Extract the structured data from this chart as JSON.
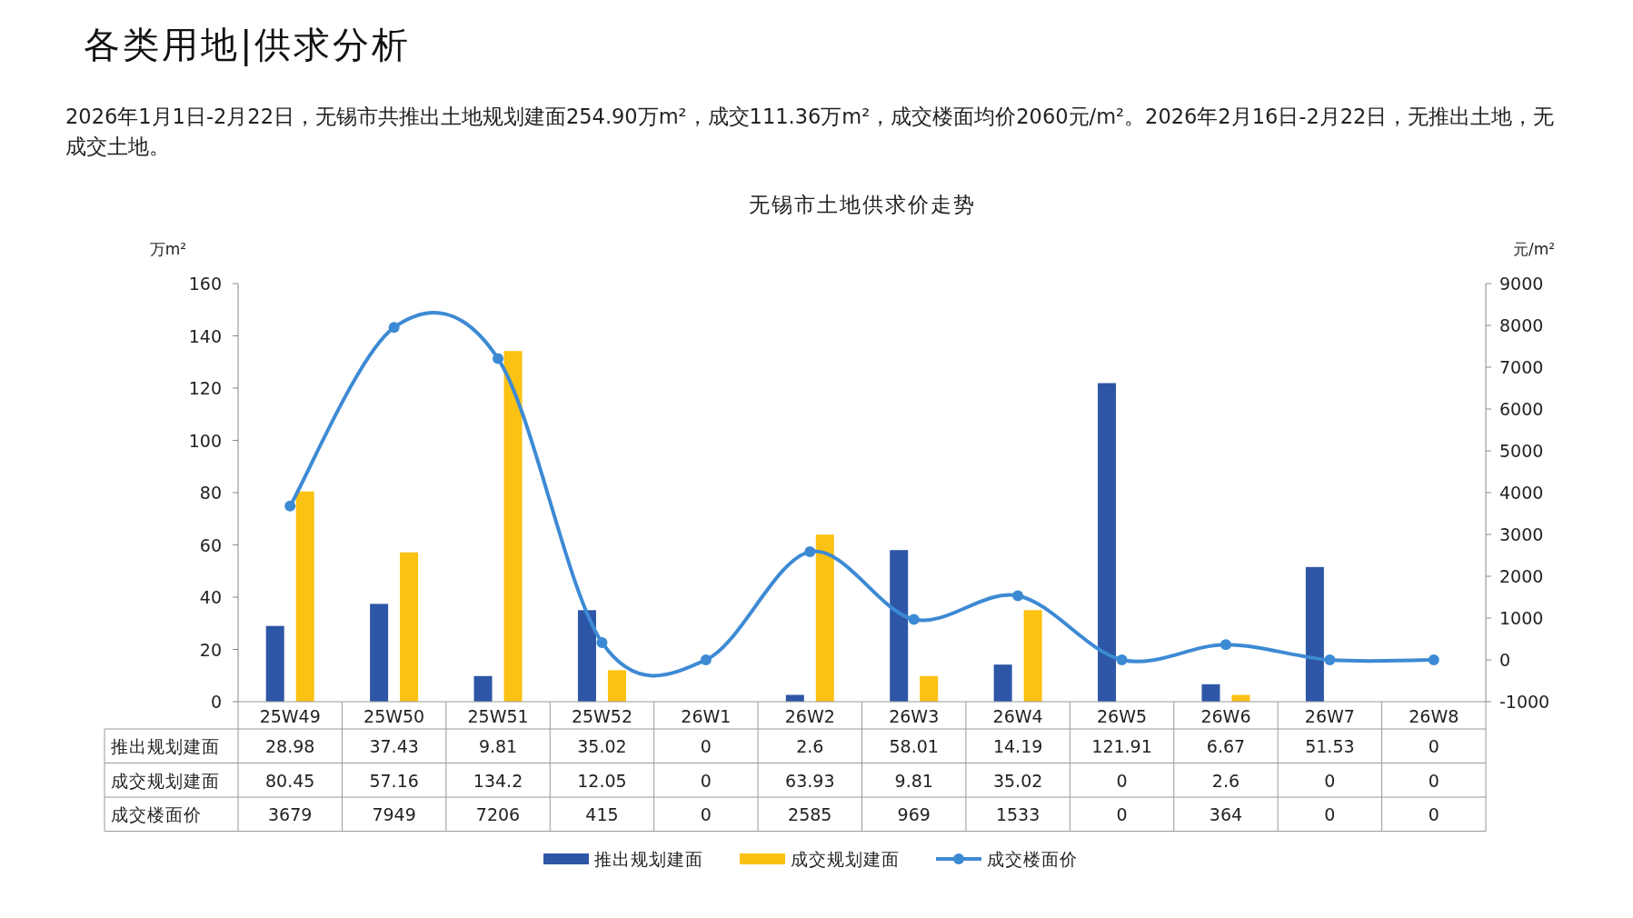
{
  "chart_data": {
    "type": "bar",
    "title": "无锡市土地供求价走势",
    "annotations": [
      "各类用地|供求分析",
      "2026年1月1日-2月22日，无锡市共推出土地规划建面254.90万m²，成交111.36万m²，成交楼面均价2060元/m²。2026年2月16日-2月22日，无推出土地，无成交土地。"
    ],
    "ylabel": "万m²",
    "y2label": "元/m²",
    "categories": [
      "25W49",
      "25W50",
      "25W51",
      "25W52",
      "26W1",
      "26W2",
      "26W3",
      "26W4",
      "26W5",
      "26W6",
      "26W7",
      "26W8"
    ],
    "series": [
      {
        "name": "推出规划建面",
        "color": "#2e56a6",
        "values": [
          28.98,
          37.43,
          9.81,
          35.02,
          0,
          2.6,
          58.01,
          14.19,
          121.91,
          6.67,
          51.53,
          0
        ]
      },
      {
        "name": "成交规划建面",
        "color": "#fbc113",
        "values": [
          80.45,
          57.16,
          134.2,
          12.05,
          0,
          63.93,
          9.81,
          35.02,
          0,
          2.6,
          0,
          0
        ]
      },
      {
        "name": "成交楼面价",
        "type": "line",
        "axis": "y2",
        "color": "#3d8ad4",
        "values": [
          3679,
          7949,
          7206,
          415,
          0,
          2585,
          969,
          1533,
          0,
          364,
          0,
          0
        ]
      }
    ],
    "ylim": [
      0,
      160
    ],
    "yticks": [
      0,
      20,
      40,
      60,
      80,
      100,
      120,
      140,
      160
    ],
    "y2lim": [
      -1000,
      9000
    ],
    "y2ticks": [
      -1000,
      0,
      1000,
      2000,
      3000,
      4000,
      5000,
      6000,
      7000,
      8000,
      9000
    ],
    "data_labels": true,
    "legend": "bottom",
    "marker": "circle"
  }
}
